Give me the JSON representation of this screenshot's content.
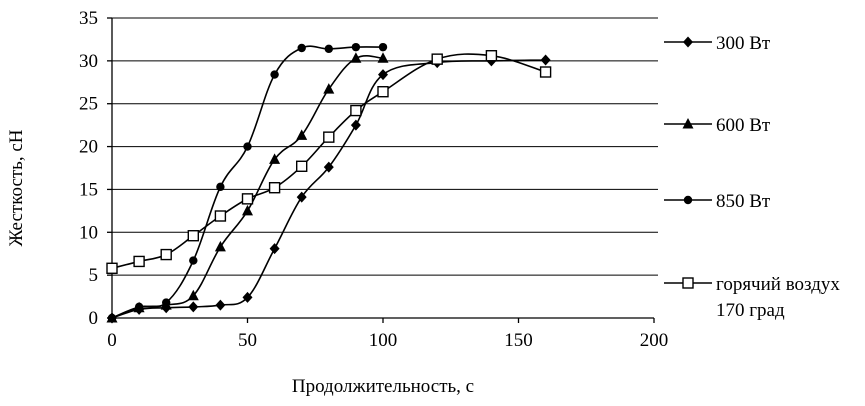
{
  "chart_data": {
    "type": "line",
    "title": "",
    "xlabel": "Продолжительность,  с",
    "ylabel": "Жесткость,  сН",
    "xlim": [
      0,
      200
    ],
    "ylim": [
      0,
      35
    ],
    "xticks": [
      "0",
      "50",
      "100",
      "150",
      "200"
    ],
    "yticks": [
      "0",
      "5",
      "10",
      "15",
      "20",
      "25",
      "30",
      "35"
    ],
    "grid": "horizontal",
    "legend_position": "right",
    "series": [
      {
        "name": "300 Вт",
        "marker": "diamond",
        "x": [
          0,
          10,
          20,
          30,
          40,
          50,
          60,
          70,
          80,
          90,
          100,
          120,
          140,
          160
        ],
        "y": [
          0,
          1.0,
          1.2,
          1.3,
          1.5,
          2.4,
          8.1,
          14.1,
          17.6,
          22.5,
          28.4,
          29.8,
          30.0,
          30.1
        ]
      },
      {
        "name": "600 Вт",
        "marker": "triangle",
        "x": [
          0,
          10,
          20,
          30,
          40,
          50,
          60,
          70,
          80,
          90,
          100
        ],
        "y": [
          0,
          1.2,
          1.5,
          2.6,
          8.3,
          12.5,
          18.5,
          21.3,
          26.7,
          30.3,
          30.3
        ]
      },
      {
        "name": "850 Вт",
        "marker": "circle",
        "x": [
          0,
          10,
          20,
          30,
          40,
          50,
          60,
          70,
          80,
          90,
          100
        ],
        "y": [
          0,
          1.3,
          1.8,
          6.7,
          15.3,
          20.0,
          28.4,
          31.5,
          31.4,
          31.6,
          31.6
        ]
      },
      {
        "name": "горячий воздух 170 град",
        "legend_lines": [
          "горячий воздух",
          "170 град"
        ],
        "marker": "square",
        "x": [
          0,
          10,
          20,
          30,
          40,
          50,
          60,
          70,
          80,
          90,
          100,
          120,
          140,
          160
        ],
        "y": [
          5.8,
          6.6,
          7.4,
          9.6,
          11.9,
          13.9,
          15.2,
          17.7,
          21.1,
          24.2,
          26.4,
          30.2,
          30.6,
          28.7
        ]
      }
    ]
  }
}
